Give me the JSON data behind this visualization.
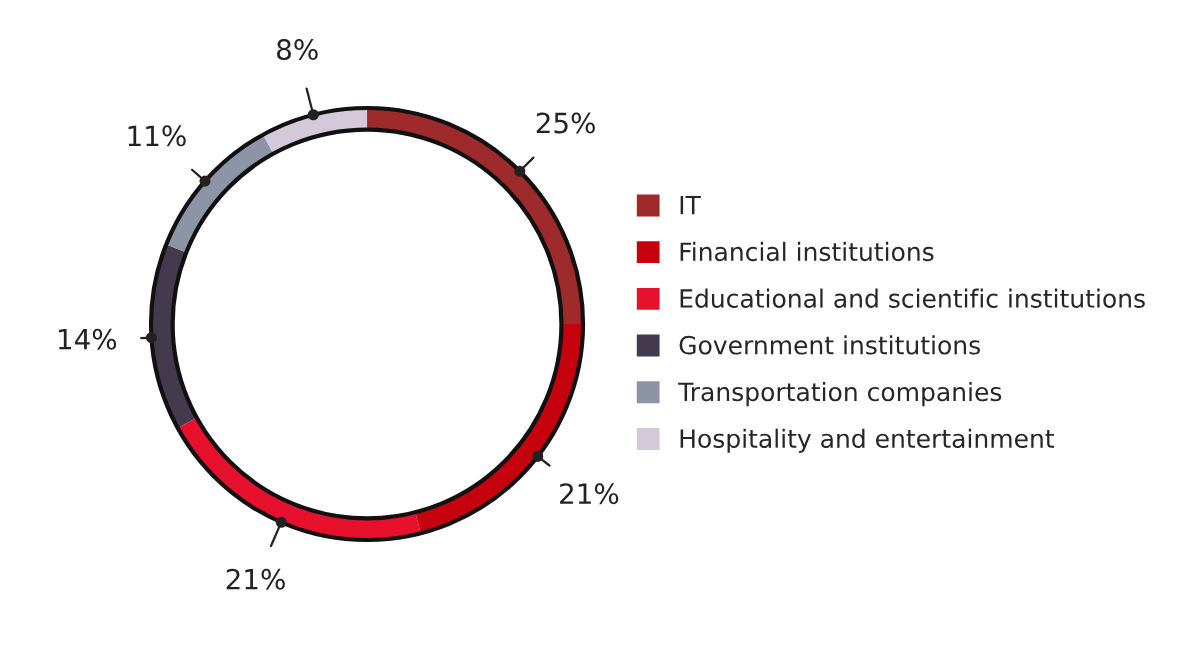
{
  "chart_data": {
    "type": "donut",
    "categories": [
      "IT",
      "Financial institutions",
      "Educational and scientific institutions",
      "Government institutions",
      "Transportation companies",
      "Hospitality and entertainment"
    ],
    "values": [
      25,
      21,
      21,
      14,
      11,
      8
    ],
    "value_labels": [
      "25%",
      "21%",
      "21%",
      "14%",
      "11%",
      "8%"
    ],
    "colors": [
      "#9e2a2b",
      "#c4010d",
      "#e8112d",
      "#433a4d",
      "#8d94a6",
      "#d4c9d9"
    ],
    "legend": "right"
  }
}
